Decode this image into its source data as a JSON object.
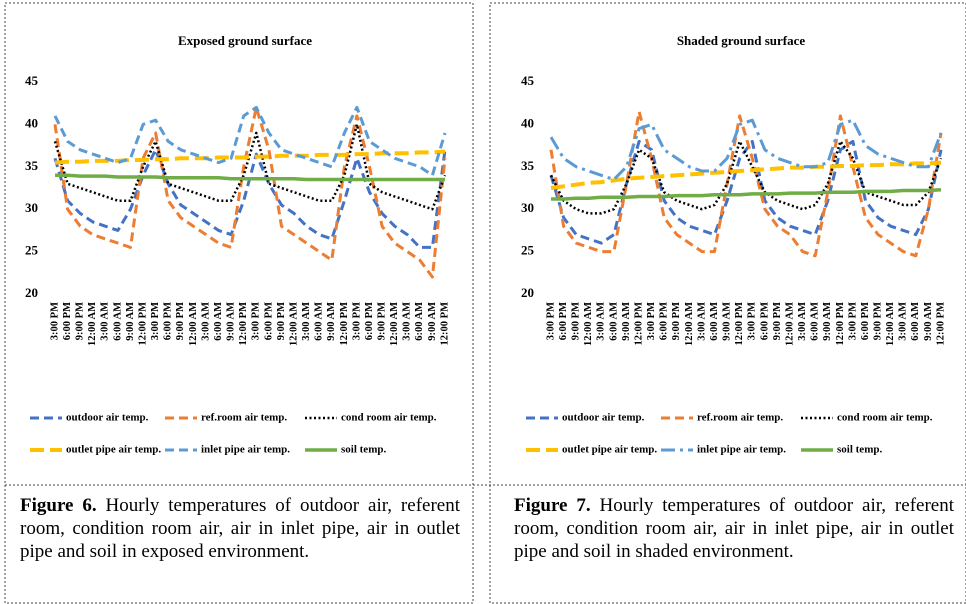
{
  "chart_data": [
    {
      "type": "line",
      "title": "Exposed ground surface",
      "categories": [
        "3:00 PM",
        "6:00 PM",
        "9:00 PM",
        "12:00 AM",
        "3:00 AM",
        "6:00 AM",
        "9:00 AM",
        "12:00 PM",
        "3:00 PM",
        "6:00 PM",
        "9:00 PM",
        "12:00 AM",
        "3:00 AM",
        "6:00 AM",
        "9:00 AM",
        "12:00 PM",
        "3:00 PM",
        "6:00 PM",
        "9:00 PM",
        "12:00 AM",
        "3:00 AM",
        "6:00 AM",
        "9:00 AM",
        "12:00 PM",
        "3:00 PM",
        "6:00 PM",
        "9:00 PM",
        "12:00 AM",
        "3:00 AM",
        "6:00 AM",
        "9:00 AM",
        "12:00 PM"
      ],
      "ylim": [
        20,
        45
      ],
      "yticks": [
        20,
        25,
        30,
        35,
        40,
        45
      ],
      "series": [
        {
          "name": "outdoor air temp.",
          "color": "#4472c4",
          "dash": "dashed",
          "values": [
            36,
            31,
            29.5,
            28.5,
            28,
            27.5,
            30,
            34,
            37,
            33,
            30.5,
            29.5,
            28.5,
            27.5,
            27,
            31,
            36.5,
            33,
            30.5,
            29.5,
            28,
            27,
            26.5,
            31,
            36,
            32,
            29.5,
            28,
            27,
            25.5,
            25.5,
            37
          ]
        },
        {
          "name": "ref.room air temp.",
          "color": "#ed7d31",
          "dash": "dashed",
          "values": [
            40,
            30,
            28,
            27,
            26.5,
            26,
            25.5,
            36,
            39,
            31,
            29,
            28,
            27,
            26,
            25.5,
            35,
            42,
            37,
            28,
            27,
            26,
            25,
            24,
            35,
            41,
            35,
            28,
            26,
            25,
            24,
            22,
            36
          ]
        },
        {
          "name": "cond room air temp.",
          "color": "#000000",
          "dash": "dotted",
          "values": [
            38,
            33,
            32.5,
            32,
            31.5,
            31,
            31,
            35,
            38,
            33,
            32.5,
            32,
            31.5,
            31,
            31,
            34,
            39,
            33,
            32.5,
            32,
            31.5,
            31,
            31,
            34,
            40,
            33,
            32,
            31.5,
            31,
            30.5,
            30,
            34
          ]
        },
        {
          "name": "outlet pipe air temp.",
          "color": "#ffc000",
          "dash": "long",
          "values": [
            35.5,
            35.6,
            35.6,
            35.7,
            35.7,
            35.7,
            35.8,
            35.8,
            35.9,
            35.9,
            36,
            36,
            36,
            36.1,
            36.1,
            36.1,
            36.2,
            36.2,
            36.3,
            36.3,
            36.3,
            36.4,
            36.4,
            36.4,
            36.5,
            36.5,
            36.6,
            36.6,
            36.6,
            36.7,
            36.7,
            36.8
          ]
        },
        {
          "name": "inlet pipe air temp.",
          "color": "#5b9bd5",
          "dash": "dashed",
          "values": [
            41,
            38,
            37,
            36.5,
            36,
            35.5,
            36,
            40,
            40.5,
            38,
            37,
            36.5,
            36,
            35.5,
            36,
            41,
            42,
            39,
            37,
            36.5,
            36,
            35.5,
            35,
            39,
            42,
            38,
            37,
            36,
            35.5,
            35,
            34,
            39
          ]
        },
        {
          "name": "soil temp.",
          "color": "#70ad47",
          "dash": "solid",
          "values": [
            34,
            34,
            33.9,
            33.9,
            33.9,
            33.8,
            33.8,
            33.8,
            33.8,
            33.7,
            33.7,
            33.7,
            33.7,
            33.7,
            33.6,
            33.6,
            33.6,
            33.6,
            33.6,
            33.6,
            33.5,
            33.5,
            33.5,
            33.5,
            33.5,
            33.5,
            33.5,
            33.5,
            33.5,
            33.5,
            33.5,
            33.5
          ]
        }
      ]
    },
    {
      "type": "line",
      "title": "Shaded ground surface",
      "categories": [
        "3:00 PM",
        "6:00 PM",
        "9:00 PM",
        "12:00 AM",
        "3:00 AM",
        "6:00 AM",
        "9:00 AM",
        "12:00 PM",
        "3:00 PM",
        "6:00 PM",
        "9:00 PM",
        "12:00 AM",
        "3:00 AM",
        "6:00 AM",
        "9:00 AM",
        "12:00 PM",
        "3:00 PM",
        "6:00 PM",
        "9:00 PM",
        "12:00 AM",
        "3:00 AM",
        "6:00 AM",
        "9:00 AM",
        "12:00 PM",
        "3:00 PM",
        "6:00 PM",
        "9:00 PM",
        "12:00 AM",
        "3:00 AM",
        "6:00 AM",
        "9:00 AM",
        "12:00 PM"
      ],
      "ylim": [
        20,
        45
      ],
      "yticks": [
        20,
        25,
        30,
        35,
        40,
        45
      ],
      "series": [
        {
          "name": "outdoor air temp.",
          "color": "#4472c4",
          "dash": "dashed",
          "values": [
            34,
            29,
            27,
            26.5,
            26,
            27,
            33,
            38,
            37,
            31,
            29,
            28,
            27.5,
            27,
            31,
            36,
            38,
            31,
            29,
            28,
            27.5,
            27,
            31,
            37,
            38,
            31,
            29,
            28,
            27.5,
            27,
            30,
            37
          ]
        },
        {
          "name": "ref.room air temp.",
          "color": "#ed7d31",
          "dash": "dashed",
          "values": [
            37,
            28,
            26,
            25.5,
            25,
            25,
            33,
            41.5,
            36,
            29,
            27,
            26,
            25,
            25,
            33,
            41,
            36,
            30,
            28,
            27,
            25,
            24.5,
            32,
            41,
            35,
            29,
            27,
            26,
            25,
            24.5,
            30,
            39
          ]
        },
        {
          "name": "cond room air temp.",
          "color": "#000000",
          "dash": "dotted",
          "values": [
            34,
            31,
            30,
            29.5,
            29.5,
            30,
            33,
            37,
            36,
            32,
            31,
            30.5,
            30,
            30.5,
            33,
            38,
            35,
            32,
            31,
            30.5,
            30,
            30.5,
            33,
            38,
            36,
            32,
            31.5,
            31,
            30.5,
            30.5,
            32,
            36
          ]
        },
        {
          "name": "outlet pipe air temp.",
          "color": "#ffc000",
          "dash": "long",
          "values": [
            32.5,
            32.7,
            32.9,
            33.1,
            33.2,
            33.4,
            33.6,
            33.7,
            33.8,
            33.9,
            34,
            34.1,
            34.2,
            34.3,
            34.4,
            34.5,
            34.6,
            34.7,
            34.8,
            34.9,
            34.9,
            35,
            35,
            35.1,
            35.1,
            35.2,
            35.2,
            35.3,
            35.3,
            35.4,
            35.4,
            35.5
          ]
        },
        {
          "name": "inlet pipe air temp.",
          "color": "#5b9bd5",
          "dash": "dashdot",
          "values": [
            38.5,
            36,
            35,
            34.5,
            34,
            33.5,
            35,
            39.5,
            40,
            37,
            36,
            35,
            34.5,
            34.5,
            36,
            40,
            40.5,
            37,
            36,
            35.5,
            35,
            35,
            35.5,
            40,
            40.5,
            37.5,
            36.5,
            36,
            35.5,
            35,
            35,
            39
          ]
        },
        {
          "name": "soil temp.",
          "color": "#70ad47",
          "dash": "solid",
          "values": [
            31.2,
            31.2,
            31.3,
            31.3,
            31.4,
            31.4,
            31.4,
            31.5,
            31.5,
            31.5,
            31.6,
            31.6,
            31.6,
            31.7,
            31.7,
            31.7,
            31.8,
            31.8,
            31.8,
            31.9,
            31.9,
            31.9,
            32,
            32,
            32,
            32.1,
            32.1,
            32.1,
            32.2,
            32.2,
            32.2,
            32.3
          ]
        }
      ]
    }
  ],
  "captions": [
    {
      "label": "Figure 6.",
      "text": "Hourly temperatures of outdoor air, referent room, condition room air, air in inlet pipe, air in outlet pipe and soil in exposed environment."
    },
    {
      "label": "Figure 7.",
      "text": "Hourly temperatures of outdoor air, referent room, condition room air, air in inlet pipe, air in outlet pipe and soil in shaded environment."
    }
  ]
}
